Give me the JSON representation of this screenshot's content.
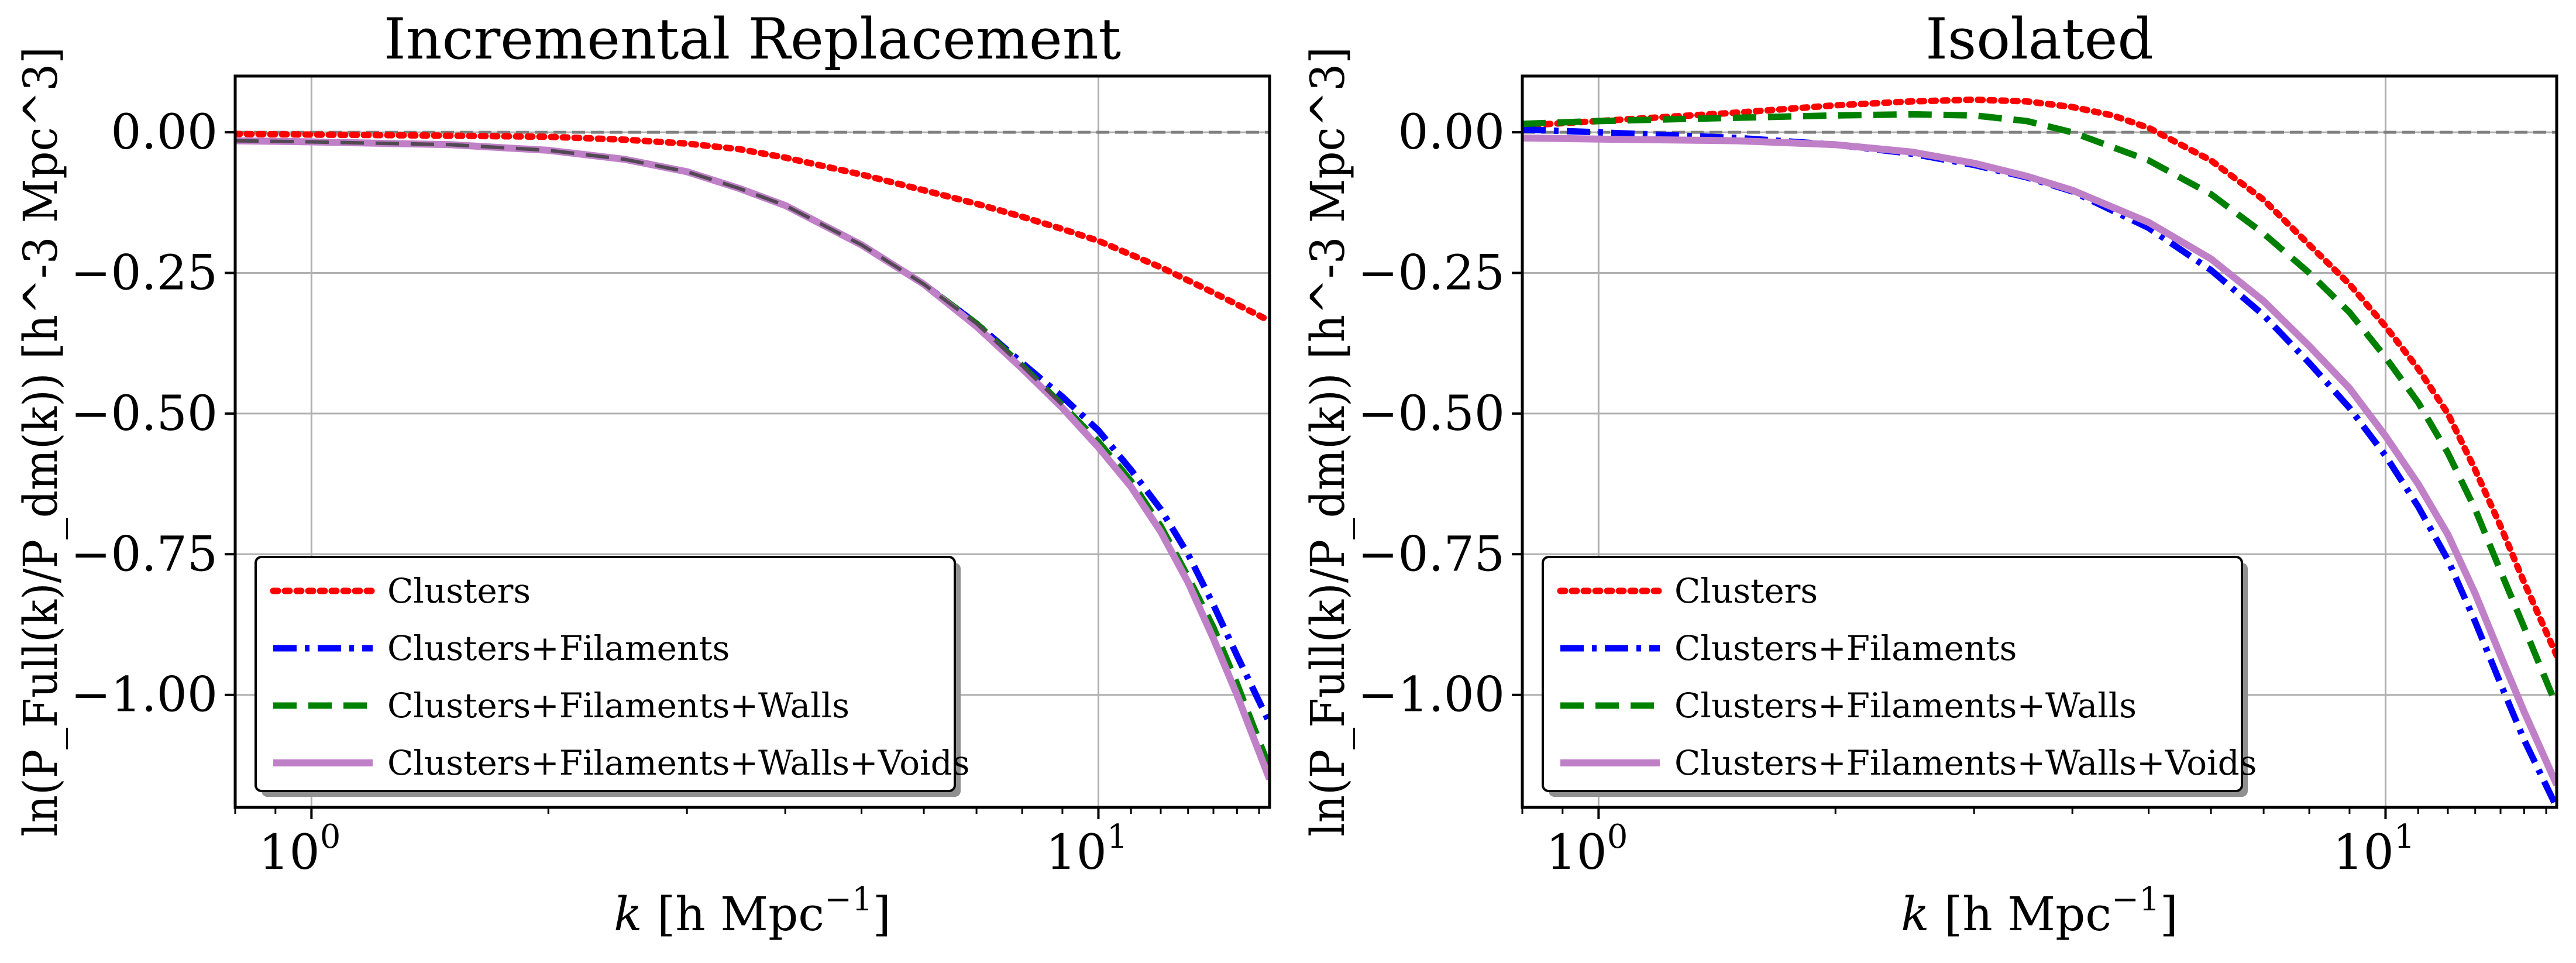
{
  "chart_data": [
    {
      "type": "line",
      "title": "Incremental Replacement",
      "xlabel_base": "k",
      "xlabel_unit": "[h Mpc",
      "xlabel_exp": "−1",
      "xlabel_close": "]",
      "ylabel": "ln(P_Full(k)/P_dm(k)) [h^-3 Mpc^3]",
      "xscale": "log",
      "xlim": [
        0.8,
        16.5
      ],
      "ylim": [
        -1.2,
        0.1
      ],
      "yticks": [
        0.0,
        -0.25,
        -0.5,
        -0.75,
        -1.0
      ],
      "ytick_labels": [
        "0.00",
        "−0.25",
        "−0.50",
        "−0.75",
        "−1.00"
      ],
      "xtick_labels": [
        {
          "base": "10",
          "exp": "0",
          "value": 1
        },
        {
          "base": "10",
          "exp": "1",
          "value": 10
        }
      ],
      "grid": true,
      "reference_line_y": 0,
      "legend_position": "lower-left",
      "series": [
        {
          "name": "Clusters",
          "color": "#ff0000",
          "style": "dotted",
          "x": [
            0.8,
            1.0,
            1.5,
            2.0,
            2.5,
            3.0,
            3.5,
            4.0,
            5.0,
            6.0,
            7.0,
            8.0,
            9.0,
            10.0,
            12.0,
            14.0,
            16.5
          ],
          "y": [
            -0.003,
            -0.004,
            -0.006,
            -0.008,
            -0.013,
            -0.02,
            -0.03,
            -0.045,
            -0.075,
            -0.103,
            -0.127,
            -0.15,
            -0.172,
            -0.193,
            -0.24,
            -0.285,
            -0.335
          ]
        },
        {
          "name": "Clusters+Filaments",
          "color": "#0000ff",
          "style": "dashdot",
          "x": [
            0.8,
            1.0,
            1.5,
            2.0,
            2.5,
            3.0,
            3.5,
            4.0,
            5.0,
            6.0,
            7.0,
            8.0,
            9.0,
            10.0,
            11.0,
            12.0,
            13.0,
            14.0,
            15.0,
            16.5
          ],
          "y": [
            -0.015,
            -0.017,
            -0.022,
            -0.032,
            -0.048,
            -0.07,
            -0.1,
            -0.13,
            -0.2,
            -0.27,
            -0.34,
            -0.41,
            -0.47,
            -0.53,
            -0.6,
            -0.67,
            -0.75,
            -0.84,
            -0.93,
            -1.05
          ]
        },
        {
          "name": "Clusters+Filaments+Walls",
          "color": "#008000",
          "style": "dashed",
          "x": [
            0.8,
            1.0,
            1.5,
            2.0,
            2.5,
            3.0,
            3.5,
            4.0,
            5.0,
            6.0,
            7.0,
            8.0,
            9.0,
            10.0,
            11.0,
            12.0,
            13.0,
            14.0,
            15.0,
            16.5
          ],
          "y": [
            -0.015,
            -0.017,
            -0.022,
            -0.032,
            -0.048,
            -0.07,
            -0.1,
            -0.13,
            -0.2,
            -0.27,
            -0.34,
            -0.415,
            -0.485,
            -0.55,
            -0.62,
            -0.7,
            -0.79,
            -0.88,
            -0.98,
            -1.13
          ]
        },
        {
          "name": "Clusters+Filaments+Walls+Voids",
          "color": "#c080c8",
          "style": "solid",
          "x": [
            0.8,
            1.0,
            1.5,
            2.0,
            2.5,
            3.0,
            3.5,
            4.0,
            5.0,
            6.0,
            7.0,
            8.0,
            9.0,
            10.0,
            11.0,
            12.0,
            13.0,
            14.0,
            15.0,
            16.5
          ],
          "y": [
            -0.015,
            -0.017,
            -0.022,
            -0.032,
            -0.048,
            -0.07,
            -0.1,
            -0.13,
            -0.2,
            -0.27,
            -0.345,
            -0.42,
            -0.49,
            -0.56,
            -0.63,
            -0.71,
            -0.8,
            -0.9,
            -1.0,
            -1.15
          ]
        }
      ]
    },
    {
      "type": "line",
      "title": "Isolated",
      "xlabel_base": "k",
      "xlabel_unit": "[h Mpc",
      "xlabel_exp": "−1",
      "xlabel_close": "]",
      "ylabel": "ln(P_Full(k)/P_dm(k)) [h^-3 Mpc^3]",
      "xscale": "log",
      "xlim": [
        0.8,
        16.5
      ],
      "ylim": [
        -1.2,
        0.1
      ],
      "yticks": [
        0.0,
        -0.25,
        -0.5,
        -0.75,
        -1.0
      ],
      "ytick_labels": [
        "0.00",
        "−0.25",
        "−0.50",
        "−0.75",
        "−1.00"
      ],
      "xtick_labels": [
        {
          "base": "10",
          "exp": "0",
          "value": 1
        },
        {
          "base": "10",
          "exp": "1",
          "value": 10
        }
      ],
      "grid": true,
      "reference_line_y": 0,
      "legend_position": "lower-left",
      "series": [
        {
          "name": "Clusters",
          "color": "#ff0000",
          "style": "dotted",
          "x": [
            0.8,
            1.0,
            1.5,
            2.0,
            2.5,
            3.0,
            3.5,
            4.0,
            4.5,
            5.0,
            6.0,
            7.0,
            8.0,
            9.0,
            10.0,
            11.0,
            12.0,
            13.0,
            14.0,
            15.0,
            16.5
          ],
          "y": [
            0.012,
            0.02,
            0.035,
            0.048,
            0.055,
            0.058,
            0.055,
            0.045,
            0.03,
            0.008,
            -0.05,
            -0.12,
            -0.2,
            -0.27,
            -0.345,
            -0.42,
            -0.5,
            -0.6,
            -0.7,
            -0.8,
            -0.93
          ]
        },
        {
          "name": "Clusters+Filaments",
          "color": "#0000ff",
          "style": "dashdot",
          "x": [
            0.8,
            1.0,
            1.5,
            2.0,
            2.5,
            3.0,
            3.5,
            4.0,
            5.0,
            6.0,
            7.0,
            8.0,
            9.0,
            10.0,
            11.0,
            12.0,
            13.0,
            14.0,
            15.0,
            16.5
          ],
          "y": [
            0.005,
            0.0,
            -0.01,
            -0.022,
            -0.038,
            -0.058,
            -0.08,
            -0.105,
            -0.17,
            -0.245,
            -0.325,
            -0.41,
            -0.49,
            -0.575,
            -0.665,
            -0.76,
            -0.87,
            -0.98,
            -1.08,
            -1.2
          ]
        },
        {
          "name": "Clusters+Filaments+Walls",
          "color": "#008000",
          "style": "dashed",
          "x": [
            0.8,
            1.0,
            1.5,
            2.0,
            2.5,
            3.0,
            3.5,
            4.0,
            5.0,
            6.0,
            7.0,
            8.0,
            9.0,
            10.0,
            11.0,
            12.0,
            13.0,
            14.0,
            15.0,
            16.5
          ],
          "y": [
            0.015,
            0.02,
            0.026,
            0.03,
            0.032,
            0.03,
            0.02,
            0.0,
            -0.05,
            -0.11,
            -0.18,
            -0.25,
            -0.32,
            -0.4,
            -0.48,
            -0.57,
            -0.67,
            -0.78,
            -0.88,
            -1.02
          ]
        },
        {
          "name": "Clusters+Filaments+Walls+Voids",
          "color": "#c080c8",
          "style": "solid",
          "x": [
            0.8,
            1.0,
            1.5,
            2.0,
            2.5,
            3.0,
            3.5,
            4.0,
            5.0,
            6.0,
            7.0,
            8.0,
            9.0,
            10.0,
            11.0,
            12.0,
            13.0,
            14.0,
            15.0,
            16.5
          ],
          "y": [
            -0.01,
            -0.012,
            -0.015,
            -0.022,
            -0.035,
            -0.055,
            -0.078,
            -0.103,
            -0.16,
            -0.225,
            -0.3,
            -0.38,
            -0.455,
            -0.54,
            -0.625,
            -0.715,
            -0.82,
            -0.93,
            -1.03,
            -1.16
          ]
        }
      ]
    }
  ]
}
